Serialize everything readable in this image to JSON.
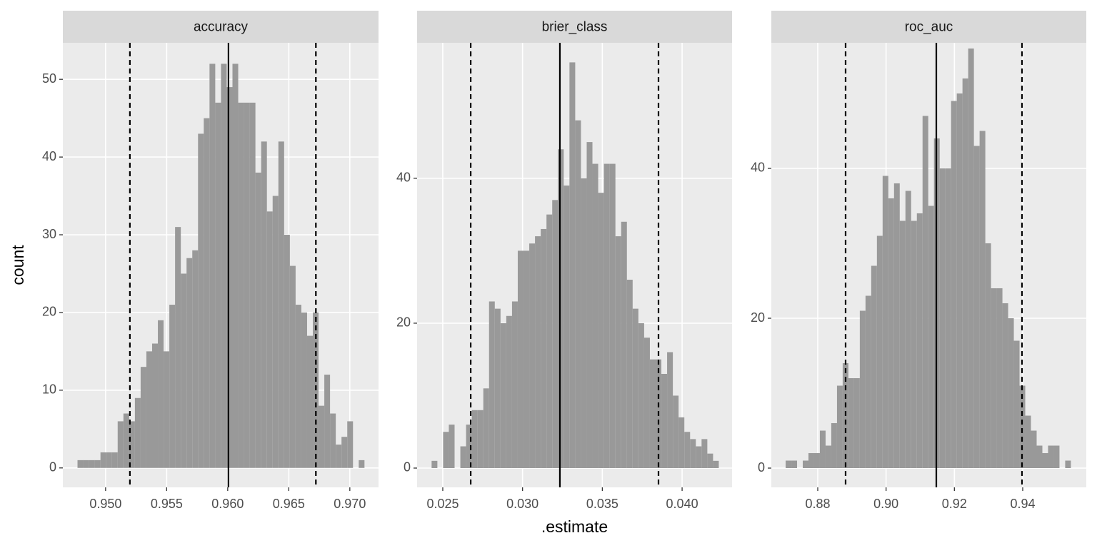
{
  "chart_data": [
    {
      "type": "histogram",
      "title": "accuracy",
      "y_label": "count",
      "color": "#999999",
      "line_color": "#000000",
      "grid": true,
      "bins": [
        0.9477,
        0.94817,
        0.94864,
        0.94911,
        0.94958,
        0.95005,
        0.95052,
        0.95099,
        0.95146,
        0.95193,
        0.9524,
        0.95287,
        0.95334,
        0.95381,
        0.95428,
        0.95475,
        0.95522,
        0.95569,
        0.95616,
        0.95663,
        0.9571,
        0.95757,
        0.95804,
        0.95851,
        0.95898,
        0.95945,
        0.95992,
        0.96039,
        0.96086,
        0.96133,
        0.9618,
        0.96227,
        0.96274,
        0.96321,
        0.96368,
        0.96415,
        0.96462,
        0.96509,
        0.96556,
        0.96603,
        0.9665,
        0.96697,
        0.96744,
        0.96791,
        0.96838,
        0.96885,
        0.96932,
        0.96979,
        0.97026,
        0.97073,
        0.9712
      ],
      "values": [
        1,
        1,
        1,
        1,
        2,
        2,
        2,
        6,
        7,
        6,
        9,
        13,
        15,
        16,
        19,
        15,
        21,
        31,
        25,
        27,
        28,
        43,
        45,
        52,
        47,
        52,
        49,
        52,
        47,
        47,
        47,
        38,
        42,
        33,
        35,
        42,
        30,
        26,
        21,
        20,
        17,
        20,
        8,
        12,
        7,
        3,
        4,
        6,
        0,
        1
      ],
      "xlim": [
        0.9465,
        0.97235
      ],
      "ylim": [
        -2.5,
        54.7
      ],
      "xticks": [
        {
          "value": 0.95,
          "label": "0.950"
        },
        {
          "value": 0.955,
          "label": "0.955"
        },
        {
          "value": 0.96,
          "label": "0.960"
        },
        {
          "value": 0.965,
          "label": "0.965"
        },
        {
          "value": 0.97,
          "label": "0.970"
        }
      ],
      "yticks": [
        0,
        10,
        20,
        30,
        40,
        50
      ],
      "reference_lines": [
        {
          "value": 0.95199,
          "style": "dashed"
        },
        {
          "value": 0.96006,
          "style": "solid"
        },
        {
          "value": 0.96722,
          "style": "dashed"
        }
      ]
    },
    {
      "type": "histogram",
      "title": "brier_class",
      "x_label": ".estimate",
      "color": "#999999",
      "line_color": "#000000",
      "grid": true,
      "bins": [
        0.0243,
        0.02466,
        0.02502,
        0.02538,
        0.02574,
        0.0261,
        0.02646,
        0.02682,
        0.02718,
        0.02754,
        0.0279,
        0.02826,
        0.02862,
        0.02898,
        0.02934,
        0.0297,
        0.03006,
        0.03042,
        0.03078,
        0.03114,
        0.0315,
        0.03186,
        0.03222,
        0.03258,
        0.03294,
        0.0333,
        0.03366,
        0.03402,
        0.03438,
        0.03474,
        0.0351,
        0.03546,
        0.03582,
        0.03618,
        0.03654,
        0.0369,
        0.03726,
        0.03762,
        0.03798,
        0.03834,
        0.0387,
        0.03906,
        0.03942,
        0.03978,
        0.04014,
        0.0405,
        0.04086,
        0.04122,
        0.04158,
        0.04194,
        0.0423
      ],
      "values": [
        1,
        0,
        5,
        6,
        0,
        3,
        6,
        8,
        8,
        11,
        23,
        22,
        20,
        21,
        23,
        30,
        30,
        31,
        32,
        33,
        35,
        37,
        44,
        39,
        56,
        48,
        40,
        45,
        42,
        38,
        42,
        42,
        32,
        34,
        26,
        22,
        20,
        18,
        15,
        15,
        13,
        16,
        10,
        7,
        5,
        4,
        3,
        4,
        2,
        1
      ],
      "xlim": [
        0.02339,
        0.04313
      ],
      "ylim": [
        -2.66,
        58.7
      ],
      "xticks": [
        0.025,
        {
          "value": 0.03,
          "label": "0.030"
        },
        0.035,
        {
          "value": 0.04,
          "label": "0.040"
        }
      ],
      "yticks": [
        0,
        20,
        40
      ],
      "reference_lines": [
        {
          "value": 0.02675,
          "style": "dashed"
        },
        {
          "value": 0.03234,
          "style": "solid"
        },
        {
          "value": 0.03852,
          "style": "dashed"
        }
      ]
    },
    {
      "type": "histogram",
      "title": "roc_auc",
      "color": "#999999",
      "line_color": "#000000",
      "grid": true,
      "bins": [
        0.8706,
        0.87227,
        0.87394,
        0.87561,
        0.87728,
        0.87895,
        0.88062,
        0.88229,
        0.88396,
        0.88563,
        0.8873,
        0.88897,
        0.89064,
        0.89231,
        0.89398,
        0.89565,
        0.89732,
        0.89899,
        0.90066,
        0.90233,
        0.904,
        0.90567,
        0.90734,
        0.90901,
        0.91068,
        0.91235,
        0.91402,
        0.91569,
        0.91736,
        0.91903,
        0.9207,
        0.92237,
        0.92404,
        0.92571,
        0.92738,
        0.92905,
        0.93072,
        0.93239,
        0.93406,
        0.93573,
        0.9374,
        0.93907,
        0.94074,
        0.94241,
        0.94408,
        0.94575,
        0.94742,
        0.94909,
        0.95076,
        0.95243,
        0.9541
      ],
      "values": [
        1,
        1,
        0,
        1,
        2,
        2,
        5,
        3,
        6,
        11,
        14,
        12,
        12,
        21,
        23,
        27,
        31,
        39,
        36,
        38,
        33,
        37,
        33,
        34,
        47,
        35,
        44,
        40,
        40,
        49,
        50,
        52,
        56,
        43,
        45,
        30,
        24,
        24,
        22,
        20,
        17,
        11,
        7,
        5,
        3,
        2,
        3,
        3,
        0,
        1
      ],
      "xlim": [
        0.86641,
        0.95861
      ],
      "ylim": [
        -2.57,
        56.76
      ],
      "xticks": [
        0.88,
        {
          "value": 0.9,
          "label": "0.90"
        },
        0.92,
        0.94
      ],
      "yticks": [
        0,
        20,
        40
      ],
      "reference_lines": [
        {
          "value": 0.88815,
          "style": "dashed"
        },
        {
          "value": 0.91471,
          "style": "solid"
        },
        {
          "value": 0.93979,
          "style": "dashed"
        }
      ]
    }
  ]
}
